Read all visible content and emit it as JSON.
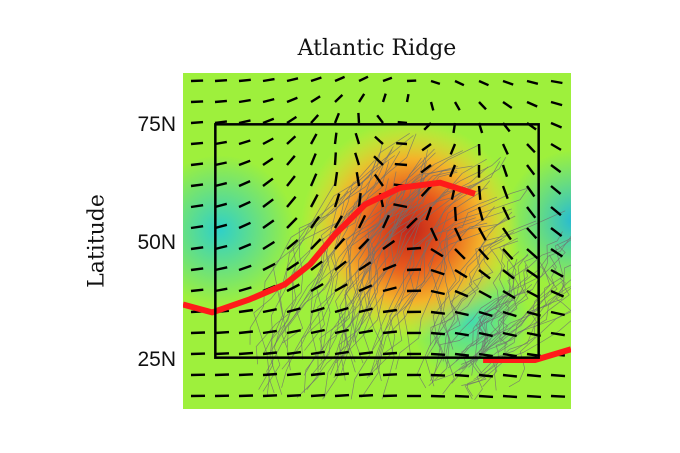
{
  "chart_data": {
    "type": "map",
    "title": "Atlantic Ridge",
    "xlabel": "",
    "ylabel": "Latitude",
    "yticks": [
      {
        "value": 75,
        "label": "75N"
      },
      {
        "value": 50,
        "label": "50N"
      },
      {
        "value": 25,
        "label": "25N"
      }
    ],
    "ylim": [
      14,
      86
    ],
    "xlim": [
      -100,
      20
    ],
    "grid": false,
    "colors": {
      "low": "#2fd0c8",
      "mid": "#9ef03c",
      "high": "#c2241a",
      "ridge_line": "#ff1a1a",
      "tracks": "#707070",
      "arrows": "#000000"
    },
    "domain_box": {
      "lon": [
        -90,
        10
      ],
      "lat": [
        25,
        75
      ]
    },
    "ridge_lines": [
      {
        "name": "ridge-axis",
        "points": [
          [
            -100,
            36.4
          ],
          [
            -91,
            34.7
          ],
          [
            -79.3,
            37.5
          ],
          [
            -68.5,
            40.7
          ],
          [
            -60.7,
            45
          ],
          [
            -53,
            51.4
          ],
          [
            -43.7,
            57.8
          ],
          [
            -32.9,
            61.4
          ],
          [
            -20.5,
            62.5
          ],
          [
            -9.7,
            60.1
          ]
        ]
      },
      {
        "name": "ridge-axis-east",
        "points": [
          [
            -7.2,
            24.5
          ],
          [
            8.9,
            24.5
          ],
          [
            20,
            26.8
          ]
        ]
      }
    ],
    "anomaly_center": {
      "lon": -30,
      "lat": 53
    }
  }
}
